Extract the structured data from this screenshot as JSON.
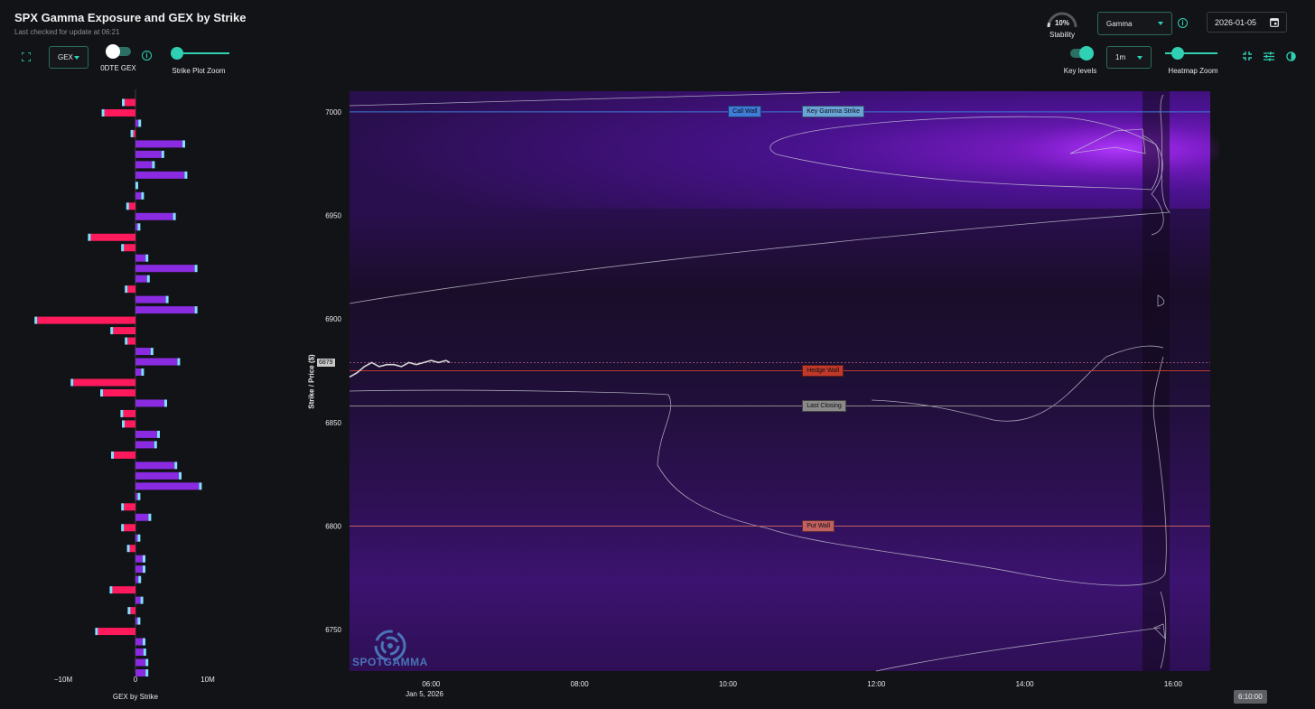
{
  "header": {
    "title": "SPX Gamma Exposure and GEX by Strike",
    "subtitle": "Last checked for update at 06:21"
  },
  "toolbar_left": {
    "metric_select": "GEX",
    "odte_label": "0DTE GEX",
    "zoom_label": "Strike Plot Zoom"
  },
  "toolbar_right": {
    "stability_value": "10%",
    "stability_label": "Stability",
    "stability_fraction": 0.1,
    "mode_select": "Gamma",
    "date_value": "2026-01-05",
    "key_levels_label": "Key levels",
    "interval_select": "1m",
    "heatmap_zoom_label": "Heatmap Zoom"
  },
  "icons": {
    "fullscreen": "fullscreen-icon",
    "info": "info-icon",
    "calendar": "calendar-icon",
    "compress": "compress-icon",
    "tune": "tune-icon",
    "contrast": "contrast-icon"
  },
  "colors": {
    "accent": "#2fd0b4",
    "positive_bar": "#8a2be2",
    "negative_bar": "#ff1a5e",
    "call_wall": "#3f7bd8",
    "key_gamma": "#6aa3d8",
    "hedge_wall": "#c0392b",
    "last_closing": "#8a8a8a",
    "put_wall": "#c06060"
  },
  "gex_chart": {
    "xlabel": "GEX by Strike",
    "ticks": [
      "−10M",
      "0",
      "10M"
    ],
    "tick_values": [
      -10,
      0,
      10
    ],
    "xlim": [
      -13.5,
      13.5
    ],
    "strike_max": 7010,
    "strike_min": 6730,
    "bars": [
      {
        "strike": 7005,
        "value": -1.5
      },
      {
        "strike": 7000,
        "value": -4.3
      },
      {
        "strike": 6995,
        "value": 0.4
      },
      {
        "strike": 6990,
        "value": -0.3
      },
      {
        "strike": 6985,
        "value": 6.5
      },
      {
        "strike": 6980,
        "value": 3.6
      },
      {
        "strike": 6975,
        "value": 2.3
      },
      {
        "strike": 6970,
        "value": 6.8
      },
      {
        "strike": 6965,
        "value": 0.0
      },
      {
        "strike": 6960,
        "value": 0.8
      },
      {
        "strike": 6955,
        "value": -0.9
      },
      {
        "strike": 6950,
        "value": 5.2
      },
      {
        "strike": 6945,
        "value": 0.3
      },
      {
        "strike": 6940,
        "value": -6.2
      },
      {
        "strike": 6935,
        "value": -1.6
      },
      {
        "strike": 6930,
        "value": 1.4
      },
      {
        "strike": 6925,
        "value": 8.2
      },
      {
        "strike": 6920,
        "value": 1.6
      },
      {
        "strike": 6915,
        "value": -1.1
      },
      {
        "strike": 6910,
        "value": 4.2
      },
      {
        "strike": 6905,
        "value": 8.2
      },
      {
        "strike": 6900,
        "value": -13.6
      },
      {
        "strike": 6895,
        "value": -3.1
      },
      {
        "strike": 6890,
        "value": -1.1
      },
      {
        "strike": 6885,
        "value": 2.1
      },
      {
        "strike": 6880,
        "value": 5.8
      },
      {
        "strike": 6875,
        "value": 0.8
      },
      {
        "strike": 6870,
        "value": -8.6
      },
      {
        "strike": 6865,
        "value": -4.5
      },
      {
        "strike": 6860,
        "value": 4.0
      },
      {
        "strike": 6855,
        "value": -1.7
      },
      {
        "strike": 6850,
        "value": -1.5
      },
      {
        "strike": 6845,
        "value": 3.0
      },
      {
        "strike": 6840,
        "value": 2.6
      },
      {
        "strike": 6835,
        "value": -3.0
      },
      {
        "strike": 6830,
        "value": 5.4
      },
      {
        "strike": 6825,
        "value": 6.0
      },
      {
        "strike": 6820,
        "value": 8.8
      },
      {
        "strike": 6815,
        "value": 0.3
      },
      {
        "strike": 6810,
        "value": -1.6
      },
      {
        "strike": 6805,
        "value": 1.8
      },
      {
        "strike": 6800,
        "value": -1.6
      },
      {
        "strike": 6795,
        "value": 0.3
      },
      {
        "strike": 6790,
        "value": -0.8
      },
      {
        "strike": 6785,
        "value": 1.0
      },
      {
        "strike": 6780,
        "value": 1.0
      },
      {
        "strike": 6775,
        "value": 0.4
      },
      {
        "strike": 6770,
        "value": -3.2
      },
      {
        "strike": 6765,
        "value": 0.7
      },
      {
        "strike": 6760,
        "value": -0.7
      },
      {
        "strike": 6755,
        "value": 0.3
      },
      {
        "strike": 6750,
        "value": -5.2
      },
      {
        "strike": 6745,
        "value": 1.0
      },
      {
        "strike": 6740,
        "value": 1.1
      },
      {
        "strike": 6735,
        "value": 1.4
      },
      {
        "strike": 6730,
        "value": 1.4
      }
    ]
  },
  "heatmap": {
    "ylabel": "Strike / Price ($)",
    "ylim": [
      6730,
      7010
    ],
    "y_ticks": [
      7000,
      6950,
      6900,
      6850,
      6800,
      6750
    ],
    "x_ticks": [
      "06:00",
      "08:00",
      "10:00",
      "12:00",
      "14:00",
      "16:00"
    ],
    "x_tick_hours": [
      6,
      8,
      10,
      12,
      14,
      16
    ],
    "xlim_hours": [
      4.9,
      16.5
    ],
    "date_sub_label": "Jan 5, 2026",
    "current_price_label": "6879",
    "current_price_value": 6879,
    "watermark": "SPOTGAMMA",
    "time_tooltip": "6:10:00",
    "key_levels": [
      {
        "name": "Call Wall",
        "value": 7000,
        "color": "#3f7bd8",
        "label_hour": 10.05
      },
      {
        "name": "Key Gamma Strike",
        "value": 7000,
        "color": "#6aa3d8",
        "label_hour": 11.05
      },
      {
        "name": "Hedge Wall",
        "value": 6875,
        "color": "#c0392b",
        "label_hour": 11.05
      },
      {
        "name": "Last Closing",
        "value": 6858,
        "color": "#8a8a8a",
        "label_hour": 11.05
      },
      {
        "name": "Put Wall",
        "value": 6800,
        "color": "#c06060",
        "label_hour": 11.05
      }
    ],
    "price_path": {
      "hours": [
        4.9,
        5.0,
        5.1,
        5.2,
        5.3,
        5.4,
        5.5,
        5.6,
        5.7,
        5.8,
        5.9,
        6.0,
        6.1,
        6.2,
        6.25
      ],
      "values": [
        6872,
        6874,
        6877,
        6879,
        6877,
        6878,
        6878,
        6877,
        6879,
        6878,
        6879,
        6880,
        6879,
        6880,
        6879
      ]
    }
  }
}
